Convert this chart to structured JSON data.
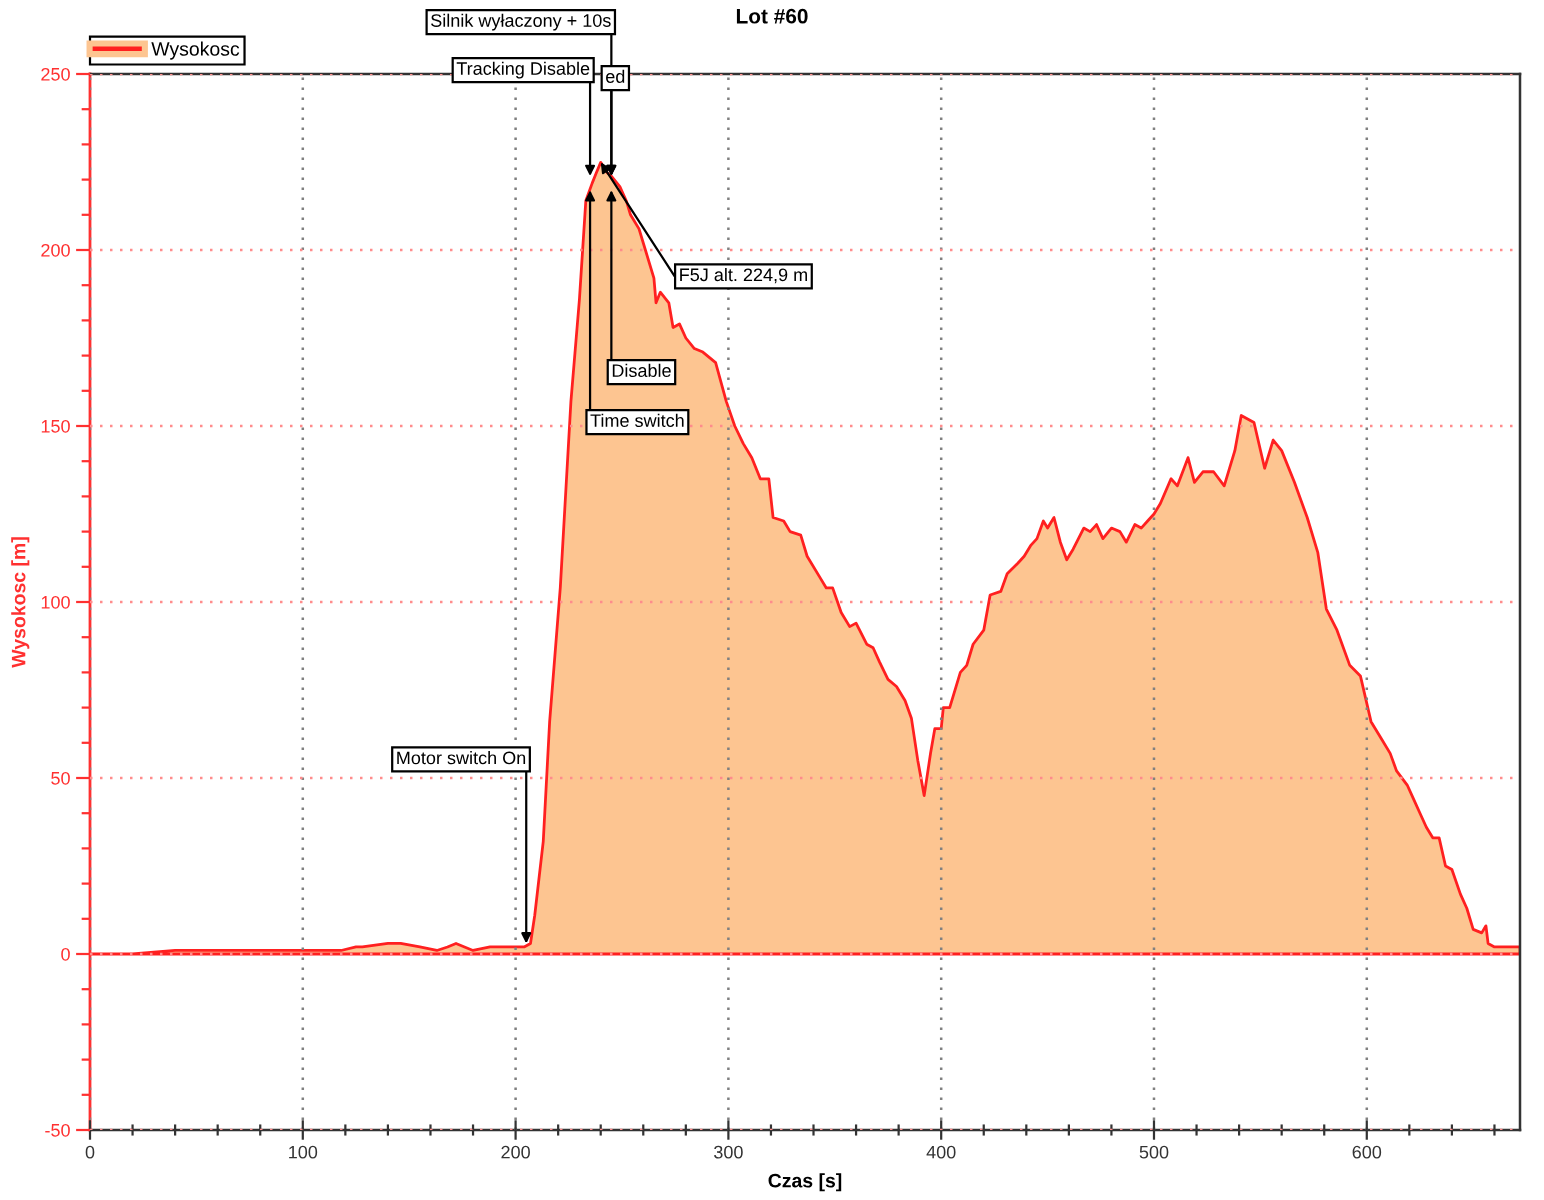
{
  "chart_data": {
    "type": "area",
    "title": "Lot #60",
    "xlabel": "Czas [s]",
    "ylabel": "Wysokosc [m]",
    "x": [
      0,
      20,
      40,
      60,
      80,
      100,
      118,
      125,
      128,
      140,
      146,
      155,
      163,
      168,
      172,
      176,
      180,
      188,
      196,
      204,
      207,
      209,
      213,
      216,
      221,
      226,
      230,
      233,
      236,
      238,
      240,
      243,
      245,
      249,
      252,
      254,
      258,
      261,
      265,
      266,
      268,
      272,
      274,
      277,
      280,
      284,
      288,
      294,
      299,
      303,
      307,
      311,
      315,
      319,
      321,
      326,
      329,
      334,
      337,
      343,
      346,
      349,
      353,
      357,
      360,
      365,
      368,
      371,
      375,
      379,
      383,
      386,
      389,
      392,
      395,
      397,
      400,
      401,
      404,
      409,
      412,
      415,
      420,
      423,
      428,
      431,
      436,
      439,
      442,
      445,
      448,
      450,
      453,
      456,
      459,
      462,
      467,
      470,
      473,
      476,
      480,
      484,
      487,
      491,
      494,
      497,
      500,
      503,
      508,
      511,
      516,
      519,
      523,
      528,
      533,
      538,
      541,
      547,
      552,
      556,
      560,
      566,
      572,
      577,
      581,
      586,
      592,
      597,
      602,
      607,
      611,
      614,
      619,
      622,
      625,
      628,
      631,
      634,
      637,
      640,
      644,
      647,
      650,
      654,
      656,
      657,
      660,
      672
    ],
    "series": [
      {
        "name": "Wysokosc",
        "color": "#fdc591",
        "values": [
          0,
          0,
          1,
          1,
          1,
          1,
          1,
          2,
          2,
          3,
          3,
          2,
          1,
          2,
          3,
          2,
          1,
          2,
          2,
          2,
          3,
          11,
          32,
          66,
          104,
          157,
          186,
          214,
          219,
          222,
          224.9,
          222,
          221,
          218,
          214,
          210,
          206,
          200,
          192,
          185,
          188,
          185,
          178,
          179,
          175,
          172,
          171,
          168,
          157,
          150,
          145,
          141,
          135,
          135,
          124,
          123,
          120,
          119,
          113,
          107,
          104,
          104,
          97,
          93,
          94,
          88,
          87,
          83,
          78,
          76,
          72,
          67,
          55,
          45,
          57,
          64,
          64,
          70,
          70,
          80,
          82,
          88,
          92,
          102,
          103,
          108,
          111,
          113,
          116,
          118,
          123,
          121,
          124,
          117,
          112,
          115,
          121,
          120,
          122,
          118,
          121,
          120,
          117,
          122,
          121,
          123,
          125,
          128,
          135,
          133,
          141,
          134,
          137,
          137,
          133,
          143,
          153,
          151,
          138,
          146,
          143,
          134,
          124,
          114,
          98,
          92,
          82,
          79,
          66,
          61,
          57,
          52,
          48,
          44,
          40,
          36,
          33,
          33,
          25,
          24,
          17,
          13,
          7,
          6,
          8,
          3,
          2,
          2
        ]
      }
    ],
    "xlim": [
      0,
      672
    ],
    "ylim": [
      -50,
      250
    ],
    "xticks": [
      0,
      {
        "value": 20,
        "label": null
      },
      {
        "value": 40,
        "label": null
      },
      {
        "value": 60,
        "label": null
      },
      {
        "value": 80,
        "label": null
      },
      100,
      {
        "value": 120,
        "label": null
      },
      {
        "value": 140,
        "label": null
      },
      {
        "value": 160,
        "label": null
      },
      {
        "value": 180,
        "label": null
      },
      200,
      {
        "value": 220,
        "label": null
      },
      {
        "value": 240,
        "label": null
      },
      {
        "value": 260,
        "label": null
      },
      {
        "value": 280,
        "label": null
      },
      300,
      {
        "value": 320,
        "label": null
      },
      {
        "value": 340,
        "label": null
      },
      {
        "value": 360,
        "label": null
      },
      {
        "value": 380,
        "label": null
      },
      400,
      {
        "value": 420,
        "label": null
      },
      {
        "value": 440,
        "label": null
      },
      {
        "value": 460,
        "label": null
      },
      {
        "value": 480,
        "label": null
      },
      500,
      {
        "value": 520,
        "label": null
      },
      {
        "value": 540,
        "label": null
      },
      {
        "value": 560,
        "label": null
      },
      {
        "value": 580,
        "label": null
      },
      600,
      {
        "value": 620,
        "label": null
      },
      {
        "value": 640,
        "label": null
      },
      {
        "value": 660,
        "label": null
      }
    ],
    "yticks": [
      -50,
      {
        "value": -40,
        "label": null
      },
      {
        "value": -30,
        "label": null
      },
      {
        "value": -20,
        "label": null
      },
      {
        "value": -10,
        "label": null
      },
      0,
      {
        "value": 10,
        "label": null
      },
      {
        "value": 20,
        "label": null
      },
      {
        "value": 30,
        "label": null
      },
      {
        "value": 40,
        "label": null
      },
      50,
      {
        "value": 60,
        "label": null
      },
      {
        "value": 70,
        "label": null
      },
      {
        "value": 80,
        "label": null
      },
      {
        "value": 90,
        "label": null
      },
      100,
      {
        "value": 110,
        "label": null
      },
      {
        "value": 120,
        "label": null
      },
      {
        "value": 130,
        "label": null
      },
      {
        "value": 140,
        "label": null
      },
      150,
      {
        "value": 160,
        "label": null
      },
      {
        "value": 170,
        "label": null
      },
      {
        "value": 180,
        "label": null
      },
      {
        "value": 190,
        "label": null
      },
      200,
      {
        "value": 210,
        "label": null
      },
      {
        "value": 220,
        "label": null
      },
      {
        "value": 230,
        "label": null
      },
      {
        "value": 240,
        "label": null
      },
      250
    ],
    "grid": true,
    "legend": "top left",
    "annotations": [
      {
        "text": "Motor switch On",
        "x": 205,
        "y": 3
      },
      {
        "text": "Tracking Disable",
        "x": 235,
        "y": 221
      },
      {
        "text": "ed",
        "x": 245,
        "y": 221
      },
      {
        "text": "Silnik wyłaczony + 10s",
        "x": 245,
        "y": 221
      },
      {
        "text": "F5J alt. 224,9 m",
        "x": 240,
        "y": 224.9
      },
      {
        "text": "Time switch",
        "x": 235,
        "y": 217
      },
      {
        "text": "Disable",
        "x": 245,
        "y": 217
      }
    ]
  }
}
